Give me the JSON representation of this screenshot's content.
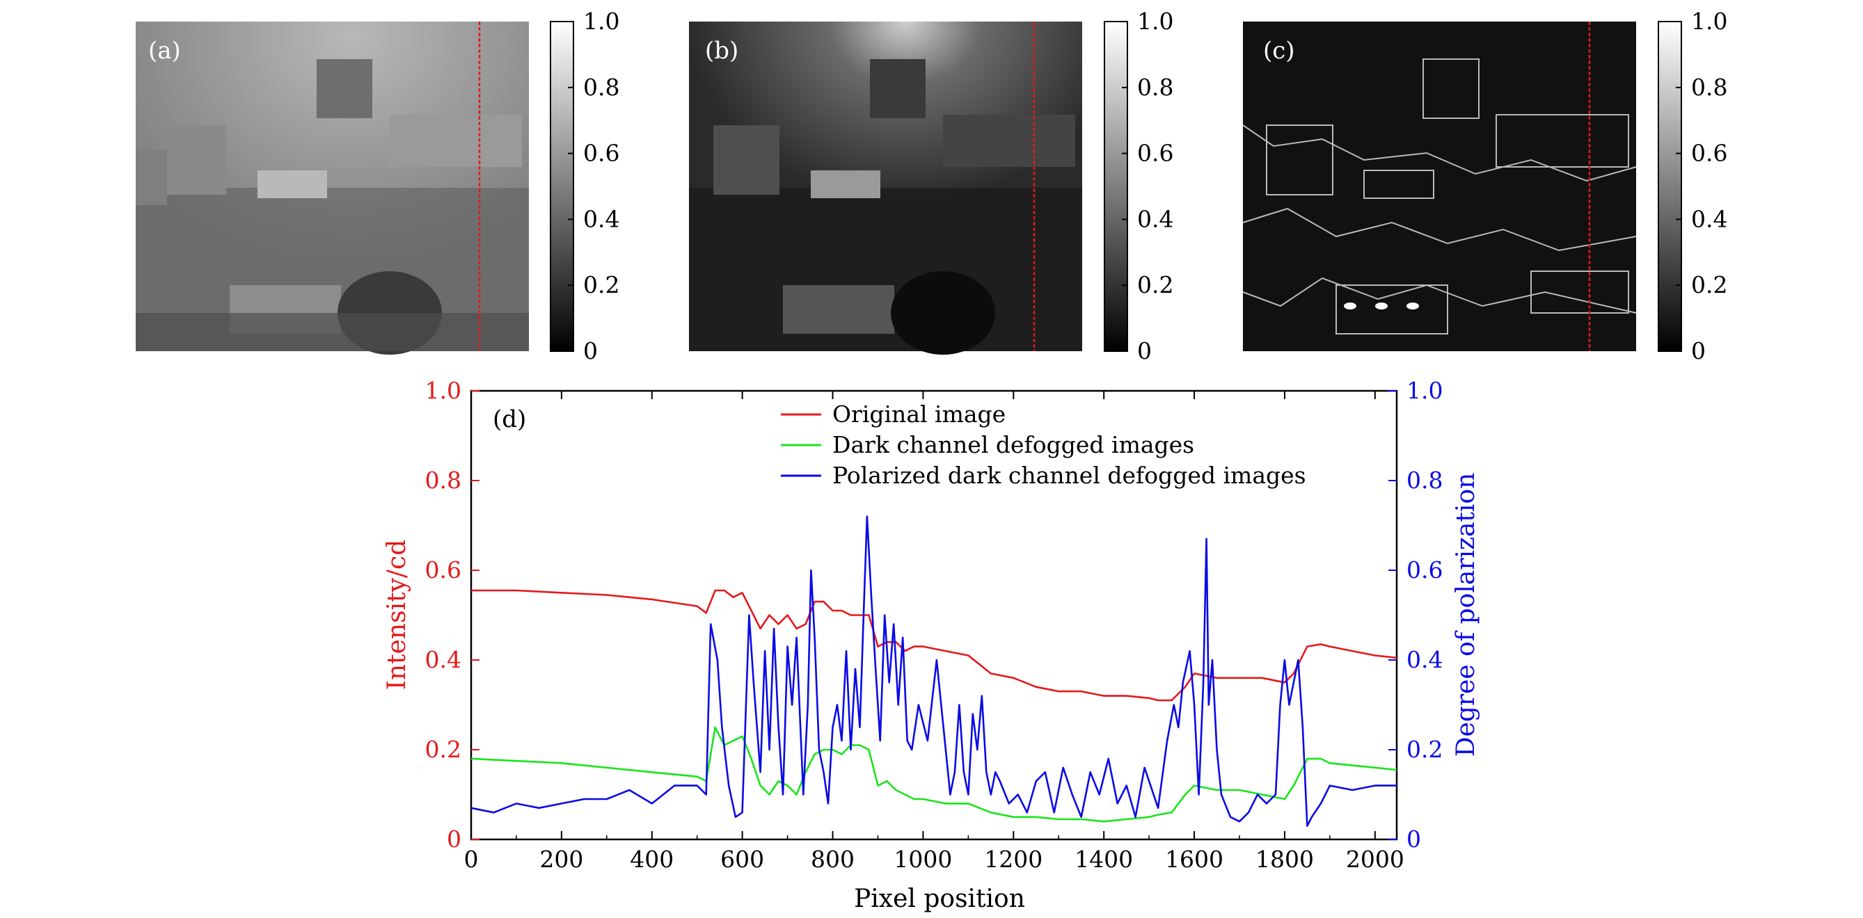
{
  "panels": [
    {
      "label": "(a)",
      "scene": "original",
      "colorbar_ticks": [
        "0",
        "0.2",
        "0.4",
        "0.6",
        "0.8",
        "1.0"
      ]
    },
    {
      "label": "(b)",
      "scene": "dark-channel",
      "colorbar_ticks": [
        "0",
        "0.2",
        "0.4",
        "0.6",
        "0.8",
        "1.0"
      ]
    },
    {
      "label": "(c)",
      "scene": "polarization",
      "colorbar_ticks": [
        "0",
        "0.2",
        "0.4",
        "0.6",
        "0.8",
        "1.0"
      ]
    }
  ],
  "colors": {
    "original": "#e51919",
    "dark_channel": "#19e519",
    "polarized": "#0a0ae6",
    "marker_line": "#e51919"
  },
  "chart_data": {
    "type": "line",
    "panel_label": "(d)",
    "xlabel": "Pixel position",
    "ylabel_left": "Intensity/cd",
    "ylabel_right": "Degree of polarization",
    "xlim": [
      0,
      2048
    ],
    "ylim_left": [
      0,
      1.0
    ],
    "ylim_right": [
      0,
      1.0
    ],
    "x_ticks": [
      "0",
      "200",
      "400",
      "600",
      "800",
      "1000",
      "1200",
      "1400",
      "1600",
      "1800",
      "2000"
    ],
    "y_ticks_left": [
      "0",
      "0.2",
      "0.4",
      "0.6",
      "0.8",
      "1.0"
    ],
    "y_ticks_right": [
      "0",
      "0.2",
      "0.4",
      "0.6",
      "0.8",
      "1.0"
    ],
    "legend_position": "top",
    "series": [
      {
        "name": "Original image",
        "axis": "left",
        "x": [
          0,
          100,
          200,
          300,
          400,
          500,
          520,
          540,
          560,
          580,
          600,
          620,
          640,
          660,
          680,
          700,
          720,
          740,
          760,
          780,
          800,
          820,
          840,
          860,
          880,
          900,
          920,
          940,
          960,
          980,
          1000,
          1050,
          1100,
          1150,
          1200,
          1250,
          1300,
          1350,
          1400,
          1450,
          1500,
          1520,
          1550,
          1580,
          1600,
          1650,
          1700,
          1750,
          1800,
          1820,
          1850,
          1880,
          1900,
          1950,
          2000,
          2048
        ],
        "y": [
          0.555,
          0.555,
          0.55,
          0.545,
          0.535,
          0.52,
          0.505,
          0.555,
          0.555,
          0.54,
          0.55,
          0.51,
          0.47,
          0.5,
          0.48,
          0.5,
          0.47,
          0.48,
          0.53,
          0.53,
          0.51,
          0.51,
          0.5,
          0.5,
          0.5,
          0.43,
          0.44,
          0.44,
          0.42,
          0.43,
          0.43,
          0.42,
          0.41,
          0.37,
          0.36,
          0.34,
          0.33,
          0.33,
          0.32,
          0.32,
          0.315,
          0.31,
          0.31,
          0.34,
          0.37,
          0.36,
          0.36,
          0.36,
          0.35,
          0.37,
          0.43,
          0.435,
          0.43,
          0.42,
          0.41,
          0.405
        ]
      },
      {
        "name": "Dark channel defogged images",
        "axis": "left",
        "x": [
          0,
          100,
          200,
          300,
          400,
          500,
          520,
          540,
          560,
          580,
          600,
          620,
          640,
          660,
          680,
          700,
          720,
          740,
          760,
          780,
          800,
          820,
          840,
          860,
          880,
          900,
          920,
          940,
          960,
          980,
          1000,
          1050,
          1100,
          1150,
          1200,
          1250,
          1300,
          1350,
          1400,
          1450,
          1500,
          1520,
          1550,
          1580,
          1600,
          1650,
          1700,
          1750,
          1800,
          1820,
          1850,
          1880,
          1900,
          1950,
          2000,
          2048
        ],
        "y": [
          0.18,
          0.175,
          0.17,
          0.16,
          0.15,
          0.14,
          0.13,
          0.25,
          0.21,
          0.22,
          0.23,
          0.18,
          0.12,
          0.1,
          0.13,
          0.12,
          0.1,
          0.15,
          0.19,
          0.2,
          0.2,
          0.19,
          0.21,
          0.21,
          0.2,
          0.12,
          0.13,
          0.11,
          0.1,
          0.09,
          0.09,
          0.08,
          0.08,
          0.06,
          0.05,
          0.05,
          0.045,
          0.045,
          0.04,
          0.045,
          0.05,
          0.055,
          0.06,
          0.1,
          0.12,
          0.11,
          0.11,
          0.1,
          0.09,
          0.12,
          0.18,
          0.18,
          0.17,
          0.165,
          0.16,
          0.155
        ]
      },
      {
        "name": "Polarized dark channel defogged images",
        "axis": "right",
        "x": [
          0,
          50,
          100,
          150,
          200,
          250,
          300,
          350,
          400,
          450,
          500,
          520,
          530,
          545,
          555,
          570,
          585,
          600,
          615,
          625,
          640,
          650,
          660,
          670,
          680,
          690,
          700,
          710,
          720,
          735,
          745,
          752,
          760,
          770,
          780,
          790,
          800,
          810,
          820,
          830,
          840,
          850,
          860,
          870,
          876,
          885,
          895,
          905,
          915,
          925,
          935,
          945,
          955,
          965,
          975,
          990,
          1010,
          1030,
          1040,
          1050,
          1060,
          1070,
          1080,
          1090,
          1100,
          1110,
          1120,
          1130,
          1140,
          1150,
          1160,
          1170,
          1190,
          1210,
          1230,
          1250,
          1270,
          1290,
          1310,
          1330,
          1350,
          1370,
          1390,
          1410,
          1430,
          1450,
          1470,
          1490,
          1510,
          1520,
          1540,
          1555,
          1565,
          1575,
          1590,
          1600,
          1610,
          1620,
          1627,
          1632,
          1640,
          1650,
          1660,
          1680,
          1700,
          1720,
          1740,
          1760,
          1780,
          1790,
          1800,
          1810,
          1820,
          1830,
          1840,
          1850,
          1860,
          1880,
          1900,
          1950,
          2000,
          2048
        ],
        "y": [
          0.07,
          0.06,
          0.08,
          0.07,
          0.08,
          0.09,
          0.09,
          0.11,
          0.08,
          0.12,
          0.12,
          0.1,
          0.48,
          0.4,
          0.25,
          0.12,
          0.05,
          0.06,
          0.5,
          0.35,
          0.15,
          0.42,
          0.2,
          0.47,
          0.25,
          0.1,
          0.43,
          0.3,
          0.45,
          0.1,
          0.3,
          0.6,
          0.45,
          0.2,
          0.15,
          0.08,
          0.25,
          0.3,
          0.22,
          0.42,
          0.2,
          0.38,
          0.25,
          0.55,
          0.72,
          0.55,
          0.38,
          0.22,
          0.5,
          0.35,
          0.48,
          0.3,
          0.45,
          0.22,
          0.2,
          0.3,
          0.22,
          0.4,
          0.3,
          0.2,
          0.1,
          0.15,
          0.3,
          0.15,
          0.1,
          0.28,
          0.2,
          0.32,
          0.15,
          0.1,
          0.15,
          0.13,
          0.08,
          0.1,
          0.06,
          0.13,
          0.15,
          0.06,
          0.16,
          0.1,
          0.05,
          0.15,
          0.1,
          0.18,
          0.08,
          0.12,
          0.05,
          0.16,
          0.1,
          0.07,
          0.22,
          0.3,
          0.25,
          0.35,
          0.42,
          0.3,
          0.1,
          0.35,
          0.67,
          0.3,
          0.4,
          0.2,
          0.1,
          0.05,
          0.04,
          0.06,
          0.1,
          0.08,
          0.1,
          0.3,
          0.4,
          0.3,
          0.35,
          0.4,
          0.25,
          0.03,
          0.05,
          0.08,
          0.12,
          0.11,
          0.12,
          0.12
        ]
      }
    ]
  }
}
